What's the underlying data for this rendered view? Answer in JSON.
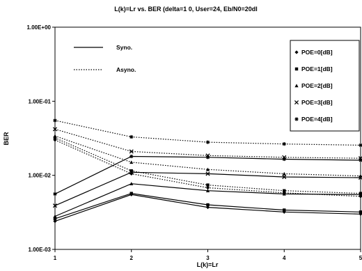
{
  "chart_data": {
    "type": "line",
    "title": "L(k)=Lr vs. BER (delta=1 0, User=24, Eb/N0=20dl",
    "xlabel": "L(k)=Lr",
    "ylabel": "BER",
    "x": [
      1,
      2,
      3,
      4,
      5
    ],
    "x_tick_labels": [
      "1",
      "2",
      "3",
      "4",
      "5"
    ],
    "y_scale": "log",
    "ylim": [
      0.001,
      1
    ],
    "y_tick_labels": [
      "1.00E+00",
      "1.00E-01",
      "1.00E-02",
      "1.00E-03"
    ],
    "grid": false,
    "style_legend": [
      {
        "label": "Syno.",
        "style": "solid"
      },
      {
        "label": "Asyno.",
        "style": "dotted"
      }
    ],
    "marker_legend": [
      {
        "label": "POE=0[dB]",
        "marker": "diamond"
      },
      {
        "label": "POE=1[dB]",
        "marker": "square"
      },
      {
        "label": "POE=2[dB]",
        "marker": "triangle"
      },
      {
        "label": "POE=3[dB]",
        "marker": "x"
      },
      {
        "label": "POE=4[dB]",
        "marker": "star"
      }
    ],
    "series": [
      {
        "name": "POE=0[dB]",
        "style": "solid",
        "values": [
          0.0024,
          0.0055,
          0.0037,
          0.0032,
          0.003
        ]
      },
      {
        "name": "POE=1[dB]",
        "style": "solid",
        "values": [
          0.0026,
          0.0057,
          0.004,
          0.0034,
          0.0032
        ]
      },
      {
        "name": "POE=2[dB]",
        "style": "solid",
        "values": [
          0.0028,
          0.0077,
          0.0062,
          0.0056,
          0.0055
        ]
      },
      {
        "name": "POE=3[dB]",
        "style": "solid",
        "values": [
          0.0039,
          0.011,
          0.0105,
          0.0095,
          0.0093
        ]
      },
      {
        "name": "POE=4[dB]",
        "style": "solid",
        "values": [
          0.0056,
          0.018,
          0.0175,
          0.0165,
          0.016
        ]
      },
      {
        "name": "POE=0[dB]",
        "style": "dotted",
        "values": [
          0.03,
          0.0105,
          0.0068,
          0.0058,
          0.0052
        ]
      },
      {
        "name": "POE=1[dB]",
        "style": "dotted",
        "values": [
          0.032,
          0.0115,
          0.0074,
          0.0062,
          0.0057
        ]
      },
      {
        "name": "POE=2[dB]",
        "style": "dotted",
        "values": [
          0.034,
          0.015,
          0.012,
          0.0105,
          0.0098
        ]
      },
      {
        "name": "POE=3[dB]",
        "style": "dotted",
        "values": [
          0.042,
          0.021,
          0.0185,
          0.0175,
          0.017
        ]
      },
      {
        "name": "POE=4[dB]",
        "style": "dotted",
        "values": [
          0.055,
          0.033,
          0.028,
          0.0265,
          0.0255
        ]
      }
    ]
  }
}
